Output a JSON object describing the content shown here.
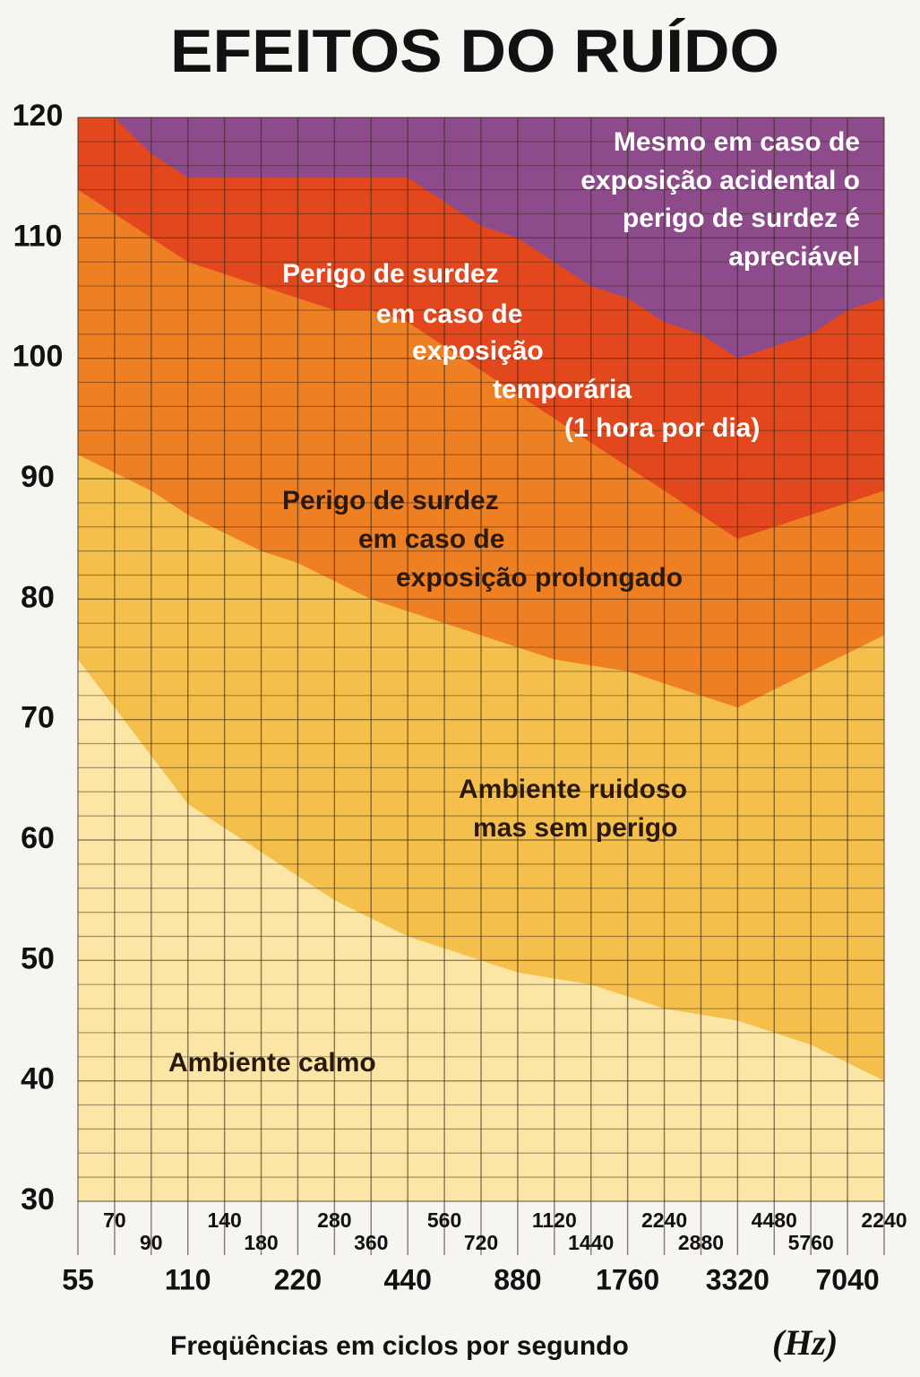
{
  "chart_data": {
    "type": "area",
    "title": "EFEITOS DO RUÍDO",
    "x_label": "Freqüências em ciclos por segundo",
    "x_annotation": "(Hz)",
    "categories": [
      "55",
      "70",
      "90",
      "110",
      "140",
      "180",
      "220",
      "280",
      "360",
      "440",
      "560",
      "720",
      "880",
      "1120",
      "1440",
      "1760",
      "2240",
      "2880",
      "3320",
      "4480",
      "5760",
      "7040",
      "2240"
    ],
    "ylim": [
      30,
      120
    ],
    "yticks": [
      30,
      40,
      50,
      60,
      70,
      80,
      90,
      100,
      110,
      120
    ],
    "minor_yticks": [
      32,
      34,
      36,
      38,
      42,
      44,
      46,
      48,
      52,
      54,
      56,
      58,
      62,
      64,
      66,
      68,
      72,
      74,
      76,
      78,
      82,
      84,
      86,
      88,
      92,
      94,
      96,
      98,
      102,
      104,
      106,
      108,
      112,
      114,
      116,
      118
    ],
    "grid": true,
    "top_region": {
      "name": [
        "Mesmo em caso de",
        "exposição acidental o",
        "perigo de surdez é",
        "apreciável"
      ],
      "color": "#8d4b8c"
    },
    "series": [
      {
        "name": [
          "Perigo de surdez",
          "em caso de",
          "exposição",
          "temporária",
          "(1 hora por dia)"
        ],
        "color": "#e2471d",
        "values": [
          120,
          120,
          117,
          115,
          115,
          115,
          115,
          115,
          115,
          115,
          113,
          111,
          110,
          108,
          106,
          105,
          103,
          102,
          100,
          101,
          102,
          104,
          105
        ]
      },
      {
        "name": [
          "Perigo de surdez",
          "em caso de",
          "exposição prolongado"
        ],
        "color": "#ee7f22",
        "values": [
          114,
          112,
          110,
          108,
          107,
          106,
          105,
          104,
          104,
          103,
          101,
          99,
          97,
          95,
          93,
          91,
          89,
          87,
          85,
          86,
          87,
          88,
          89
        ]
      },
      {
        "name": [
          "Ambiente ruidoso",
          "mas sem perigo"
        ],
        "color": "#f5bf4c",
        "values": [
          92,
          90.5,
          89,
          87,
          85.5,
          84,
          83,
          81.5,
          80,
          79,
          78,
          77,
          76,
          75,
          74.5,
          74,
          73,
          72,
          71,
          72.5,
          74,
          75.5,
          77
        ]
      },
      {
        "name": [
          "Ambiente calmo"
        ],
        "color": "#fbe6a6",
        "values": [
          75,
          71,
          67,
          63,
          61,
          59,
          57,
          55,
          53.5,
          52,
          51,
          50,
          49,
          48.5,
          48,
          47,
          46,
          45.5,
          45,
          44,
          43,
          41.5,
          40
        ]
      }
    ]
  }
}
